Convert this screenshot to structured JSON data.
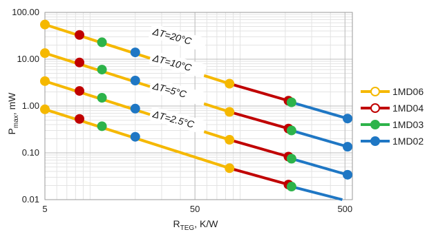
{
  "chart_data": {
    "type": "line",
    "x_scale": "log",
    "y_scale": "log",
    "xlim": [
      5,
      560
    ],
    "ylim": [
      0.01,
      100
    ],
    "x_ticks": [
      5,
      50,
      500
    ],
    "x_tick_labels": [
      "5",
      "50",
      "500"
    ],
    "y_ticks": [
      0.01,
      0.1,
      1,
      10,
      100
    ],
    "y_tick_labels": [
      "0.01",
      "0.10",
      "1.00",
      "10.00",
      "100.00"
    ],
    "xlabel_main": "R",
    "xlabel_sub": "TEG",
    "xlabel_rest": ", K/W",
    "ylabel_main": "P",
    "ylabel_sub": "max",
    "ylabel_rest": ", mW",
    "grid": true,
    "legend_position": "right",
    "series_colors": {
      "1MD06": "#f5b800",
      "1MD04": "#c00000",
      "1MD03": "#2db34a",
      "1MD02": "#1f77c4"
    },
    "legend": [
      {
        "name": "1MD06",
        "color": "#f5b800"
      },
      {
        "name": "1MD04",
        "color": "#c00000"
      },
      {
        "name": "1MD03",
        "color": "#2db34a"
      },
      {
        "name": "1MD02",
        "color": "#1f77c4"
      }
    ],
    "curves": [
      {
        "label": "ΔT=20°C",
        "segments": [
          {
            "series": "1MD06",
            "x": [
              5,
              85
            ],
            "y": [
              55,
              3.0
            ]
          },
          {
            "series": "1MD04",
            "x": [
              85,
              210
            ],
            "y": [
              3.0,
              1.3
            ]
          },
          {
            "series": "1MD03",
            "x": [
              210,
              220
            ],
            "y": [
              1.3,
              1.2
            ]
          },
          {
            "series": "1MD02",
            "x": [
              220,
              520
            ],
            "y": [
              1.2,
              0.54
            ]
          }
        ],
        "markers": [
          {
            "series": "1MD06",
            "x": 5,
            "y": 55
          },
          {
            "series": "1MD04",
            "x": 8.5,
            "y": 33
          },
          {
            "series": "1MD03",
            "x": 12,
            "y": 23
          },
          {
            "series": "1MD02",
            "x": 20,
            "y": 14
          },
          {
            "series": "1MD06",
            "x": 85,
            "y": 3.0
          },
          {
            "series": "1MD04",
            "x": 210,
            "y": 1.3
          },
          {
            "series": "1MD03",
            "x": 220,
            "y": 1.2
          },
          {
            "series": "1MD02",
            "x": 520,
            "y": 0.54
          }
        ]
      },
      {
        "label": "ΔT=10°C",
        "segments": [
          {
            "series": "1MD06",
            "x": [
              5,
              85
            ],
            "y": [
              13.5,
              0.75
            ]
          },
          {
            "series": "1MD04",
            "x": [
              85,
              210
            ],
            "y": [
              0.75,
              0.33
            ]
          },
          {
            "series": "1MD03",
            "x": [
              210,
              220
            ],
            "y": [
              0.33,
              0.3
            ]
          },
          {
            "series": "1MD02",
            "x": [
              220,
              520
            ],
            "y": [
              0.3,
              0.135
            ]
          }
        ],
        "markers": [
          {
            "series": "1MD06",
            "x": 5,
            "y": 13.5
          },
          {
            "series": "1MD04",
            "x": 8.5,
            "y": 8.5
          },
          {
            "series": "1MD03",
            "x": 12,
            "y": 6
          },
          {
            "series": "1MD02",
            "x": 20,
            "y": 3.5
          },
          {
            "series": "1MD06",
            "x": 85,
            "y": 0.75
          },
          {
            "series": "1MD04",
            "x": 210,
            "y": 0.33
          },
          {
            "series": "1MD03",
            "x": 220,
            "y": 0.3
          },
          {
            "series": "1MD02",
            "x": 520,
            "y": 0.135
          }
        ]
      },
      {
        "label": "ΔT=5°C",
        "segments": [
          {
            "series": "1MD06",
            "x": [
              5,
              85
            ],
            "y": [
              3.4,
              0.19
            ]
          },
          {
            "series": "1MD04",
            "x": [
              85,
              210
            ],
            "y": [
              0.19,
              0.083
            ]
          },
          {
            "series": "1MD03",
            "x": [
              210,
              220
            ],
            "y": [
              0.083,
              0.075
            ]
          },
          {
            "series": "1MD02",
            "x": [
              220,
              520
            ],
            "y": [
              0.075,
              0.034
            ]
          }
        ],
        "markers": [
          {
            "series": "1MD06",
            "x": 5,
            "y": 3.4
          },
          {
            "series": "1MD04",
            "x": 8.5,
            "y": 2.1
          },
          {
            "series": "1MD03",
            "x": 12,
            "y": 1.5
          },
          {
            "series": "1MD02",
            "x": 20,
            "y": 0.88
          },
          {
            "series": "1MD06",
            "x": 85,
            "y": 0.19
          },
          {
            "series": "1MD04",
            "x": 210,
            "y": 0.083
          },
          {
            "series": "1MD03",
            "x": 220,
            "y": 0.075
          },
          {
            "series": "1MD02",
            "x": 520,
            "y": 0.034
          }
        ]
      },
      {
        "label": "ΔT=2.5°C",
        "segments": [
          {
            "series": "1MD06",
            "x": [
              5,
              85
            ],
            "y": [
              0.85,
              0.047
            ]
          },
          {
            "series": "1MD04",
            "x": [
              85,
              210
            ],
            "y": [
              0.047,
              0.021
            ]
          },
          {
            "series": "1MD03",
            "x": [
              210,
              220
            ],
            "y": [
              0.021,
              0.019
            ]
          },
          {
            "series": "1MD02",
            "x": [
              220,
              480
            ],
            "y": [
              0.019,
              0.01
            ]
          }
        ],
        "markers": [
          {
            "series": "1MD06",
            "x": 5,
            "y": 0.85
          },
          {
            "series": "1MD04",
            "x": 8.5,
            "y": 0.53
          },
          {
            "series": "1MD03",
            "x": 12,
            "y": 0.37
          },
          {
            "series": "1MD02",
            "x": 20,
            "y": 0.22
          },
          {
            "series": "1MD06",
            "x": 85,
            "y": 0.047
          },
          {
            "series": "1MD04",
            "x": 210,
            "y": 0.021
          },
          {
            "series": "1MD03",
            "x": 220,
            "y": 0.019
          }
        ]
      }
    ]
  }
}
